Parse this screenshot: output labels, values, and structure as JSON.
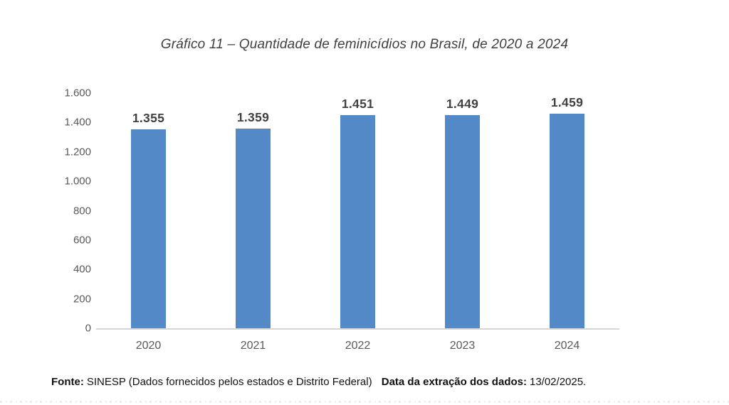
{
  "chart_data": {
    "type": "bar",
    "title": "Gráfico 11 – Quantidade de feminicídios no Brasil, de 2020 a 2024",
    "categories": [
      "2020",
      "2021",
      "2022",
      "2023",
      "2024"
    ],
    "values": [
      1355,
      1359,
      1451,
      1449,
      1459
    ],
    "value_labels": [
      "1.355",
      "1.359",
      "1.451",
      "1.449",
      "1.459"
    ],
    "xlabel": "",
    "ylabel": "",
    "ylim": [
      0,
      1600
    ],
    "ytick_interval": 200,
    "yticks_top_to_bottom": [
      "1.600",
      "1.400",
      "1.200",
      "1.000",
      "800",
      "600",
      "400",
      "200",
      "0"
    ],
    "grid": false,
    "legend_position": "none",
    "bar_color": "#5289C6"
  },
  "footer": {
    "fonte_label": "Fonte:",
    "fonte_text": "SINESP (Dados fornecidos pelos estados e Distrito Federal)",
    "extraction_label": "Data da extração dos dados:",
    "extraction_value": "13/02/2025."
  }
}
